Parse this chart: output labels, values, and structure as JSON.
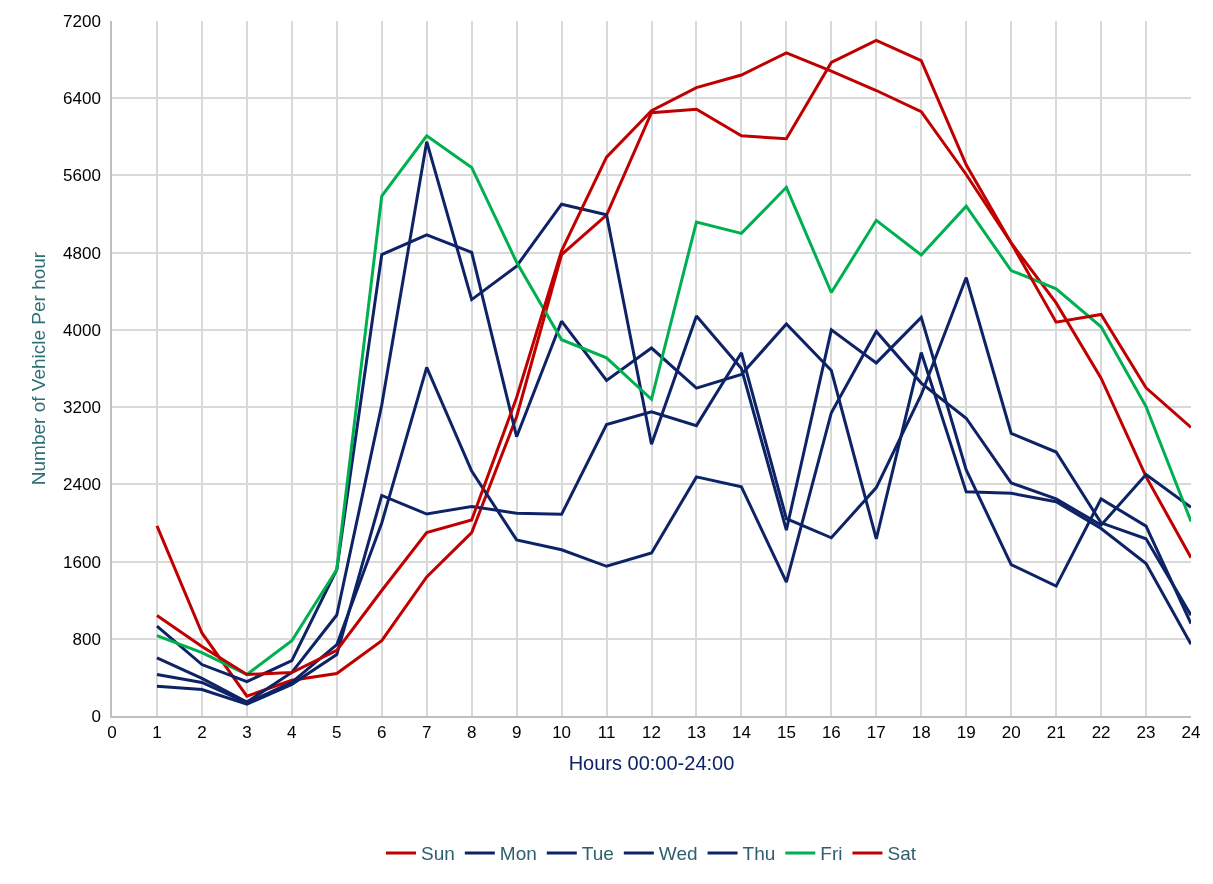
{
  "chart_data": {
    "type": "line",
    "xlabel": "Hours 00:00-24:00",
    "ylabel": "Number of Vehicle Per hour",
    "x": [
      1,
      2,
      3,
      4,
      5,
      6,
      7,
      8,
      9,
      10,
      11,
      12,
      13,
      14,
      15,
      16,
      17,
      18,
      19,
      20,
      21,
      22,
      23,
      24
    ],
    "xlim": [
      0,
      24
    ],
    "xticks": [
      0,
      1,
      2,
      3,
      4,
      5,
      6,
      7,
      8,
      9,
      10,
      11,
      12,
      13,
      14,
      15,
      16,
      17,
      18,
      19,
      20,
      21,
      22,
      23,
      24
    ],
    "ylim": [
      0,
      7200
    ],
    "yticks": [
      0,
      800,
      1600,
      2400,
      3200,
      4000,
      4800,
      5600,
      6400,
      7200
    ],
    "grid": true,
    "legend": "bottom",
    "marker": "none",
    "line_style": "solid",
    "series": [
      {
        "name": "Sun",
        "color": "#c00000",
        "values": [
          1970,
          860,
          205,
          370,
          440,
          780,
          1440,
          1900,
          3100,
          4780,
          5190,
          6250,
          6285,
          6010,
          5980,
          6770,
          7000,
          6790,
          5710,
          4900,
          4280,
          3500,
          2480,
          1640
        ]
      },
      {
        "name": "Mon",
        "color": "#0d2366",
        "values": [
          931,
          533,
          357,
          574,
          1518,
          4780,
          4985,
          4804,
          2893,
          4090,
          3477,
          3812,
          3396,
          3538,
          4061,
          3579,
          1836,
          3765,
          2322,
          2307,
          2220,
          1943,
          1579,
          743
        ]
      },
      {
        "name": "Tue",
        "color": "#0d2366",
        "values": [
          603,
          390,
          144,
          451,
          1046,
          3221,
          5950,
          4314,
          4661,
          5302,
          5192,
          2816,
          4143,
          3600,
          1926,
          4000,
          3658,
          4129,
          2550,
          1569,
          1346,
          2249,
          1967,
          957
        ]
      },
      {
        "name": "Wed",
        "color": "#0d2366",
        "values": [
          308,
          275,
          123,
          328,
          636,
          2285,
          2092,
          2171,
          2101,
          2089,
          3020,
          3151,
          3008,
          3763,
          2045,
          1846,
          2366,
          3328,
          4542,
          2929,
          2735,
          2001,
          1836,
          1044
        ]
      },
      {
        "name": "Thu",
        "color": "#0d2366",
        "values": [
          431,
          348,
          135,
          349,
          739,
          2000,
          3611,
          2538,
          1824,
          1722,
          1551,
          1689,
          2477,
          2375,
          1387,
          3142,
          3984,
          3449,
          3085,
          2414,
          2249,
          1977,
          2502,
          2162
        ]
      },
      {
        "name": "Fri",
        "color": "#00b050",
        "values": [
          833,
          656,
          430,
          780,
          1518,
          5387,
          6011,
          5683,
          4700,
          3898,
          3710,
          3281,
          5118,
          5000,
          5477,
          4387,
          5135,
          4776,
          5281,
          4615,
          4426,
          4032,
          3206,
          2016
        ]
      },
      {
        "name": "Sat",
        "color": "#c00000",
        "values": [
          1040,
          720,
          430,
          450,
          680,
          1300,
          1900,
          2030,
          3300,
          4820,
          5790,
          6270,
          6510,
          6640,
          6870,
          6680,
          6480,
          6260,
          5610,
          4900,
          4080,
          4160,
          3400,
          2990
        ]
      }
    ]
  }
}
